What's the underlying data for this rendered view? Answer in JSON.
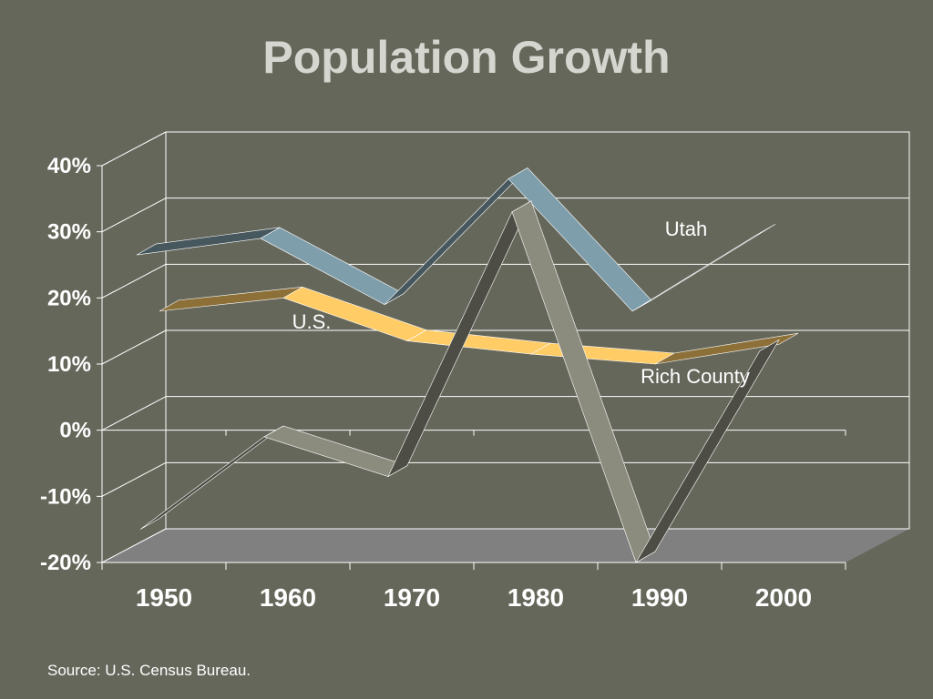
{
  "title": "Population Growth",
  "source": "Source: U.S. Census Bureau.",
  "chart_data": {
    "type": "line",
    "title": "Population Growth",
    "xlabel": "",
    "ylabel": "",
    "x": [
      "1950",
      "1960",
      "1970",
      "1980",
      "1990",
      "2000"
    ],
    "ylim": [
      -0.2,
      0.4
    ],
    "yticks": [
      -0.2,
      -0.1,
      0,
      0.1,
      0.2,
      0.3,
      0.4
    ],
    "ytick_labels": [
      "-20%",
      "-10%",
      "0%",
      "10%",
      "20%",
      "30%",
      "40%"
    ],
    "series": [
      {
        "name": "Utah",
        "values": [
          0.265,
          0.29,
          0.19,
          0.38,
          0.18,
          0.295
        ],
        "color": "#7f9eab"
      },
      {
        "name": "U.S.",
        "values": [
          0.18,
          0.2,
          0.135,
          0.115,
          0.1,
          0.13
        ],
        "color": "#ffcc66"
      },
      {
        "name": "Rich County",
        "values": [
          -0.15,
          -0.01,
          -0.07,
          0.33,
          -0.2,
          0.12
        ],
        "color": "#8c8c7e"
      }
    ],
    "grid": true,
    "legend": "inline labels"
  }
}
